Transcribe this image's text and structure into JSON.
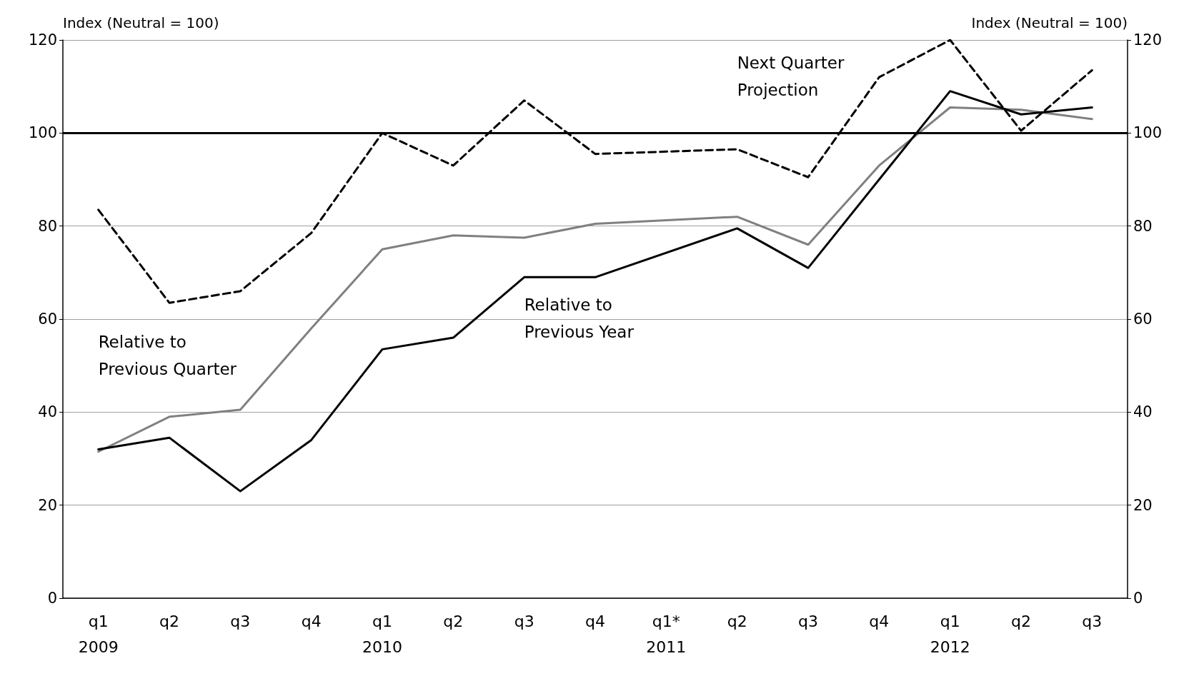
{
  "chart_data": {
    "type": "line",
    "ylabel": "Index (Neutral = 100)",
    "y2label": "Index (Neutral = 100)",
    "categories": [
      "q1\n2009",
      "q2",
      "q3",
      "q4",
      "q1\n2010",
      "q2",
      "q3",
      "q4",
      "q1*\n2011",
      "q2",
      "q3",
      "q4",
      "q1\n2012",
      "q2",
      "q3"
    ],
    "series": [
      {
        "name": "Next Quarter Projection",
        "color": "#000000",
        "line_style": "dashed",
        "values": [
          83.5,
          63.5,
          66,
          78.5,
          100,
          93,
          107,
          95.5,
          null,
          96.5,
          90.5,
          112,
          120,
          100.5,
          113.5
        ]
      },
      {
        "name": "Relative to Previous Year",
        "color": "#000000",
        "line_style": "solid",
        "values": [
          32,
          34.5,
          23,
          34,
          53.5,
          56,
          69,
          69,
          null,
          79.5,
          71,
          90,
          109,
          104,
          105.5
        ]
      },
      {
        "name": "Relative to Previous Quarter",
        "color": "#808080",
        "line_style": "solid",
        "values": [
          31.5,
          39,
          40.5,
          58,
          75,
          78,
          77.5,
          80.5,
          null,
          82,
          76,
          93,
          105.5,
          105,
          103
        ]
      }
    ],
    "ylim": [
      0,
      120
    ],
    "yticks": [
      0,
      20,
      40,
      60,
      80,
      100,
      120
    ],
    "y2lim": [
      0,
      120
    ],
    "y2ticks": [
      0,
      20,
      40,
      60,
      80,
      100,
      120
    ],
    "ref_lines": [
      {
        "axis": "y",
        "value": 100,
        "color": "#000000"
      }
    ],
    "grid": "y",
    "legend": false,
    "marker": "none"
  }
}
